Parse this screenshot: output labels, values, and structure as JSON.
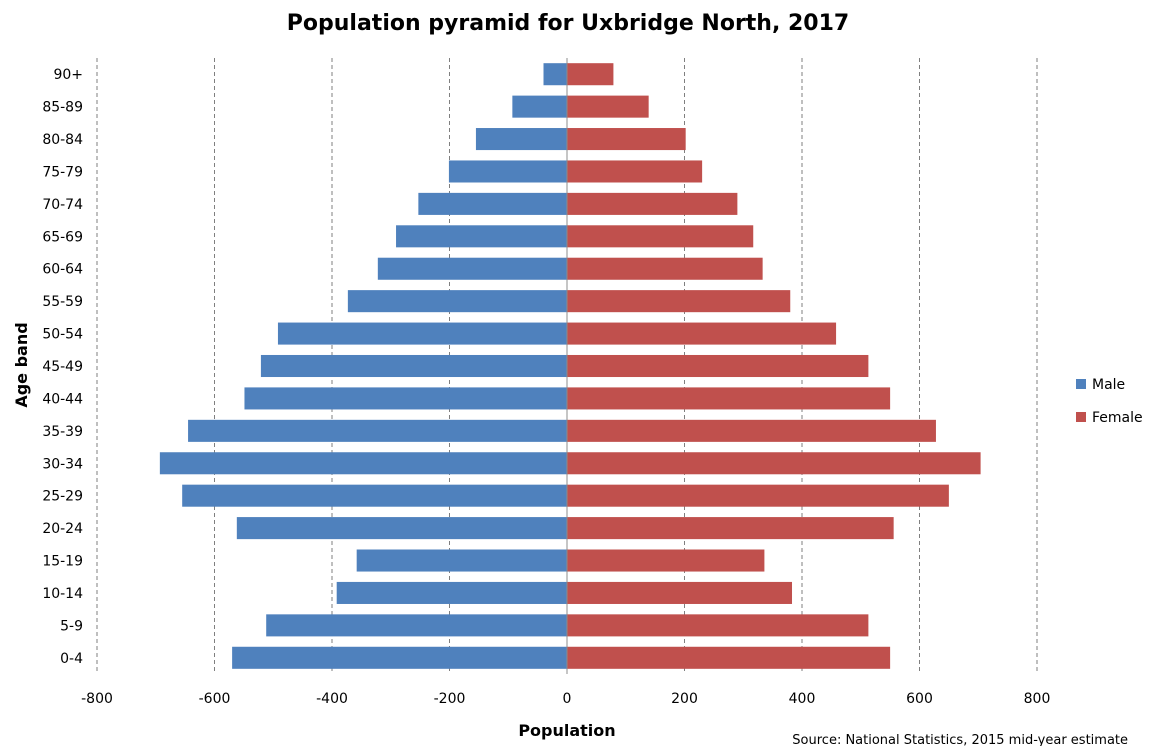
{
  "chart_data": {
    "type": "bar",
    "orientation": "horizontal",
    "title": "Population pyramid for Uxbridge North, 2017",
    "xlabel": "Population",
    "ylabel": "Age band",
    "xlim": [
      -800,
      800
    ],
    "xticks": [
      "-800",
      "-600",
      "-400",
      "-200",
      "0",
      "200",
      "400",
      "600",
      "800"
    ],
    "xtick_values": [
      -800,
      -600,
      -400,
      -200,
      0,
      200,
      400,
      600,
      800
    ],
    "grid": "vertical-dashed",
    "legend_position": "right",
    "categories": [
      "0-4",
      "5-9",
      "10-14",
      "15-19",
      "20-24",
      "25-29",
      "30-34",
      "35-39",
      "40-44",
      "45-49",
      "50-54",
      "55-59",
      "60-64",
      "65-69",
      "70-74",
      "75-79",
      "80-84",
      "85-89",
      "90+"
    ],
    "series": [
      {
        "name": "Male",
        "color": "#4F81BD",
        "values": [
          -570,
          -512,
          -392,
          -358,
          -562,
          -655,
          -693,
          -645,
          -549,
          -521,
          -492,
          -373,
          -322,
          -291,
          -253,
          -201,
          -155,
          -93,
          -40
        ]
      },
      {
        "name": "Female",
        "color": "#C0504D",
        "values": [
          550,
          513,
          383,
          336,
          556,
          650,
          704,
          628,
          550,
          513,
          458,
          380,
          333,
          317,
          290,
          230,
          202,
          139,
          79
        ]
      }
    ]
  },
  "source_note": "Source: National Statistics, 2015 mid-year estimate"
}
